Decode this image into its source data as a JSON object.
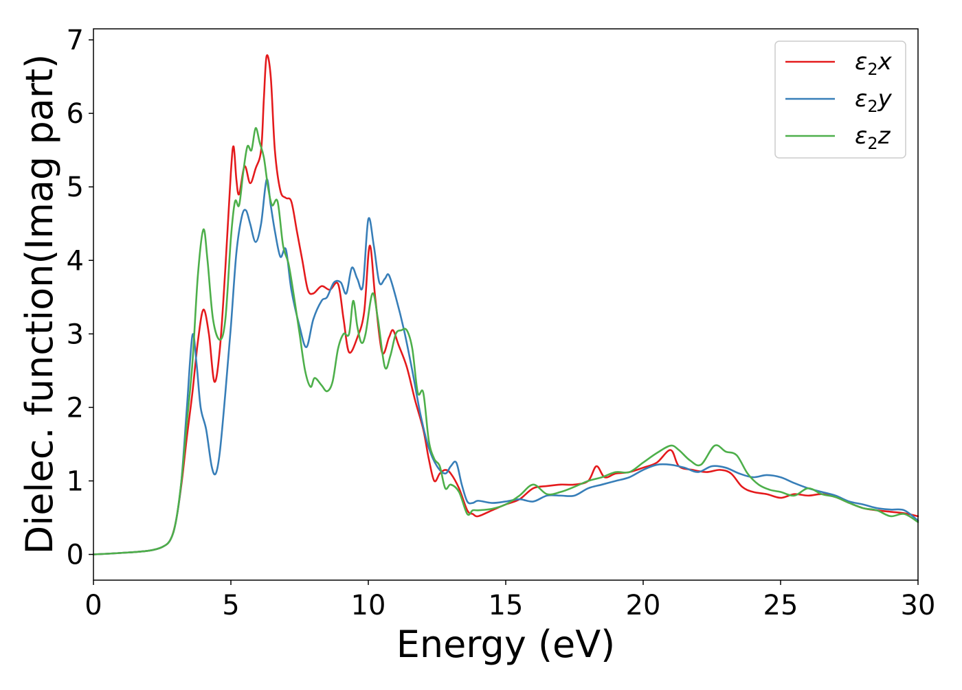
{
  "chart_data": {
    "type": "line",
    "title": "",
    "xlabel": "Energy (eV)",
    "ylabel": "Dielec. function(Imag part)",
    "xlim": [
      0,
      30
    ],
    "ylim": [
      -0.35,
      7.15
    ],
    "xticks": [
      0,
      5,
      10,
      15,
      20,
      25,
      30
    ],
    "yticks": [
      0,
      1,
      2,
      3,
      4,
      5,
      6,
      7
    ],
    "grid": false,
    "legend_position": "top-right",
    "series": [
      {
        "name": "ε2x",
        "legend_main": "ε",
        "legend_sub": "2",
        "legend_tail": "x",
        "color": "#e41a1c",
        "points": [
          [
            0,
            0
          ],
          [
            1,
            0.02
          ],
          [
            2,
            0.05
          ],
          [
            2.5,
            0.1
          ],
          [
            2.8,
            0.2
          ],
          [
            3.0,
            0.45
          ],
          [
            3.2,
            0.95
          ],
          [
            3.4,
            1.6
          ],
          [
            3.6,
            2.2
          ],
          [
            3.8,
            2.9
          ],
          [
            4.0,
            3.33
          ],
          [
            4.2,
            3.0
          ],
          [
            4.4,
            2.35
          ],
          [
            4.6,
            2.8
          ],
          [
            4.8,
            3.9
          ],
          [
            5.0,
            5.2
          ],
          [
            5.1,
            5.55
          ],
          [
            5.2,
            5.1
          ],
          [
            5.3,
            4.9
          ],
          [
            5.5,
            5.28
          ],
          [
            5.7,
            5.05
          ],
          [
            5.9,
            5.25
          ],
          [
            6.1,
            5.5
          ],
          [
            6.2,
            6.2
          ],
          [
            6.3,
            6.78
          ],
          [
            6.45,
            6.5
          ],
          [
            6.6,
            5.5
          ],
          [
            6.8,
            4.95
          ],
          [
            7.0,
            4.85
          ],
          [
            7.2,
            4.8
          ],
          [
            7.4,
            4.4
          ],
          [
            7.6,
            4.0
          ],
          [
            7.8,
            3.6
          ],
          [
            8.0,
            3.55
          ],
          [
            8.3,
            3.65
          ],
          [
            8.6,
            3.6
          ],
          [
            8.9,
            3.68
          ],
          [
            9.1,
            3.2
          ],
          [
            9.3,
            2.75
          ],
          [
            9.6,
            2.95
          ],
          [
            9.85,
            3.3
          ],
          [
            10.05,
            4.2
          ],
          [
            10.25,
            3.5
          ],
          [
            10.5,
            2.75
          ],
          [
            10.75,
            2.95
          ],
          [
            10.9,
            3.05
          ],
          [
            11.1,
            2.85
          ],
          [
            11.4,
            2.55
          ],
          [
            11.7,
            2.1
          ],
          [
            12.0,
            1.7
          ],
          [
            12.2,
            1.3
          ],
          [
            12.4,
            1.0
          ],
          [
            12.6,
            1.1
          ],
          [
            12.8,
            1.15
          ],
          [
            13.0,
            1.1
          ],
          [
            13.3,
            0.9
          ],
          [
            13.6,
            0.6
          ],
          [
            13.8,
            0.55
          ],
          [
            14.0,
            0.52
          ],
          [
            14.5,
            0.6
          ],
          [
            15.0,
            0.68
          ],
          [
            15.5,
            0.75
          ],
          [
            16.0,
            0.9
          ],
          [
            16.5,
            0.93
          ],
          [
            17.0,
            0.95
          ],
          [
            17.5,
            0.95
          ],
          [
            18.0,
            1.0
          ],
          [
            18.3,
            1.2
          ],
          [
            18.6,
            1.05
          ],
          [
            19.0,
            1.1
          ],
          [
            19.5,
            1.12
          ],
          [
            20.0,
            1.18
          ],
          [
            20.5,
            1.25
          ],
          [
            21.0,
            1.42
          ],
          [
            21.3,
            1.2
          ],
          [
            21.8,
            1.15
          ],
          [
            22.3,
            1.12
          ],
          [
            22.8,
            1.15
          ],
          [
            23.2,
            1.1
          ],
          [
            23.6,
            0.92
          ],
          [
            24.0,
            0.85
          ],
          [
            24.5,
            0.82
          ],
          [
            25.0,
            0.77
          ],
          [
            25.5,
            0.82
          ],
          [
            26.0,
            0.8
          ],
          [
            26.5,
            0.82
          ],
          [
            27.0,
            0.78
          ],
          [
            27.5,
            0.7
          ],
          [
            28.0,
            0.63
          ],
          [
            28.5,
            0.6
          ],
          [
            29.0,
            0.58
          ],
          [
            29.5,
            0.56
          ],
          [
            30.0,
            0.52
          ]
        ]
      },
      {
        "name": "ε2y",
        "legend_main": "ε",
        "legend_sub": "2",
        "legend_tail": "y",
        "color": "#377eb8",
        "points": [
          [
            0,
            0
          ],
          [
            1,
            0.02
          ],
          [
            2,
            0.05
          ],
          [
            2.5,
            0.1
          ],
          [
            2.8,
            0.2
          ],
          [
            3.0,
            0.45
          ],
          [
            3.2,
            1.0
          ],
          [
            3.4,
            2.0
          ],
          [
            3.6,
            2.98
          ],
          [
            3.75,
            2.6
          ],
          [
            3.9,
            2.0
          ],
          [
            4.1,
            1.7
          ],
          [
            4.3,
            1.2
          ],
          [
            4.45,
            1.1
          ],
          [
            4.6,
            1.4
          ],
          [
            4.8,
            2.2
          ],
          [
            5.0,
            3.1
          ],
          [
            5.2,
            4.1
          ],
          [
            5.4,
            4.6
          ],
          [
            5.55,
            4.68
          ],
          [
            5.7,
            4.5
          ],
          [
            5.9,
            4.25
          ],
          [
            6.1,
            4.5
          ],
          [
            6.3,
            5.1
          ],
          [
            6.45,
            4.75
          ],
          [
            6.6,
            4.4
          ],
          [
            6.8,
            4.05
          ],
          [
            7.0,
            4.15
          ],
          [
            7.2,
            3.6
          ],
          [
            7.5,
            3.1
          ],
          [
            7.75,
            2.82
          ],
          [
            8.0,
            3.2
          ],
          [
            8.3,
            3.45
          ],
          [
            8.5,
            3.5
          ],
          [
            8.75,
            3.7
          ],
          [
            9.0,
            3.7
          ],
          [
            9.2,
            3.55
          ],
          [
            9.4,
            3.9
          ],
          [
            9.6,
            3.75
          ],
          [
            9.8,
            3.65
          ],
          [
            10.0,
            4.56
          ],
          [
            10.2,
            4.2
          ],
          [
            10.4,
            3.7
          ],
          [
            10.6,
            3.75
          ],
          [
            10.75,
            3.8
          ],
          [
            11.0,
            3.5
          ],
          [
            11.3,
            3.05
          ],
          [
            11.6,
            2.5
          ],
          [
            11.9,
            1.9
          ],
          [
            12.2,
            1.45
          ],
          [
            12.5,
            1.2
          ],
          [
            12.8,
            1.1
          ],
          [
            13.0,
            1.2
          ],
          [
            13.2,
            1.25
          ],
          [
            13.4,
            0.95
          ],
          [
            13.6,
            0.72
          ],
          [
            13.8,
            0.7
          ],
          [
            14.0,
            0.73
          ],
          [
            14.5,
            0.7
          ],
          [
            15.0,
            0.72
          ],
          [
            15.5,
            0.75
          ],
          [
            16.0,
            0.72
          ],
          [
            16.5,
            0.8
          ],
          [
            17.0,
            0.8
          ],
          [
            17.5,
            0.8
          ],
          [
            18.0,
            0.9
          ],
          [
            18.5,
            0.95
          ],
          [
            19.0,
            1.0
          ],
          [
            19.5,
            1.05
          ],
          [
            20.0,
            1.15
          ],
          [
            20.5,
            1.22
          ],
          [
            21.0,
            1.22
          ],
          [
            21.5,
            1.18
          ],
          [
            22.0,
            1.12
          ],
          [
            22.5,
            1.2
          ],
          [
            23.0,
            1.18
          ],
          [
            23.5,
            1.1
          ],
          [
            24.0,
            1.05
          ],
          [
            24.5,
            1.08
          ],
          [
            25.0,
            1.05
          ],
          [
            25.5,
            0.97
          ],
          [
            26.0,
            0.9
          ],
          [
            26.5,
            0.85
          ],
          [
            27.0,
            0.8
          ],
          [
            27.5,
            0.72
          ],
          [
            28.0,
            0.68
          ],
          [
            28.5,
            0.63
          ],
          [
            29.0,
            0.61
          ],
          [
            29.5,
            0.6
          ],
          [
            30.0,
            0.46
          ]
        ]
      },
      {
        "name": "ε2z",
        "legend_main": "ε",
        "legend_sub": "2",
        "legend_tail": "z",
        "color": "#4daf4a",
        "points": [
          [
            0,
            0
          ],
          [
            1,
            0.02
          ],
          [
            2,
            0.05
          ],
          [
            2.5,
            0.1
          ],
          [
            2.8,
            0.2
          ],
          [
            3.0,
            0.45
          ],
          [
            3.2,
            1.0
          ],
          [
            3.4,
            1.8
          ],
          [
            3.6,
            2.6
          ],
          [
            3.8,
            3.8
          ],
          [
            4.0,
            4.42
          ],
          [
            4.15,
            4.0
          ],
          [
            4.35,
            3.2
          ],
          [
            4.6,
            2.92
          ],
          [
            4.8,
            3.2
          ],
          [
            5.0,
            4.3
          ],
          [
            5.15,
            4.8
          ],
          [
            5.3,
            4.75
          ],
          [
            5.45,
            5.2
          ],
          [
            5.6,
            5.55
          ],
          [
            5.75,
            5.5
          ],
          [
            5.9,
            5.8
          ],
          [
            6.05,
            5.6
          ],
          [
            6.2,
            5.4
          ],
          [
            6.35,
            5.0
          ],
          [
            6.5,
            4.75
          ],
          [
            6.7,
            4.8
          ],
          [
            6.9,
            4.2
          ],
          [
            7.1,
            3.95
          ],
          [
            7.3,
            3.5
          ],
          [
            7.5,
            3.0
          ],
          [
            7.7,
            2.5
          ],
          [
            7.9,
            2.28
          ],
          [
            8.05,
            2.4
          ],
          [
            8.3,
            2.3
          ],
          [
            8.5,
            2.22
          ],
          [
            8.7,
            2.35
          ],
          [
            8.9,
            2.8
          ],
          [
            9.1,
            3.0
          ],
          [
            9.3,
            3.0
          ],
          [
            9.45,
            3.45
          ],
          [
            9.6,
            3.1
          ],
          [
            9.75,
            2.88
          ],
          [
            9.9,
            3.0
          ],
          [
            10.15,
            3.55
          ],
          [
            10.35,
            3.2
          ],
          [
            10.6,
            2.55
          ],
          [
            10.8,
            2.7
          ],
          [
            11.0,
            3.0
          ],
          [
            11.2,
            3.05
          ],
          [
            11.4,
            3.05
          ],
          [
            11.6,
            2.8
          ],
          [
            11.8,
            2.2
          ],
          [
            12.0,
            2.2
          ],
          [
            12.2,
            1.55
          ],
          [
            12.4,
            1.3
          ],
          [
            12.6,
            1.2
          ],
          [
            12.8,
            0.9
          ],
          [
            13.0,
            0.95
          ],
          [
            13.3,
            0.85
          ],
          [
            13.6,
            0.55
          ],
          [
            13.8,
            0.6
          ],
          [
            14.0,
            0.6
          ],
          [
            14.5,
            0.62
          ],
          [
            15.0,
            0.68
          ],
          [
            15.5,
            0.8
          ],
          [
            16.0,
            0.95
          ],
          [
            16.5,
            0.82
          ],
          [
            17.0,
            0.85
          ],
          [
            17.5,
            0.92
          ],
          [
            18.0,
            1.0
          ],
          [
            18.5,
            1.05
          ],
          [
            19.0,
            1.12
          ],
          [
            19.5,
            1.12
          ],
          [
            20.0,
            1.25
          ],
          [
            20.5,
            1.38
          ],
          [
            21.0,
            1.48
          ],
          [
            21.3,
            1.42
          ],
          [
            21.7,
            1.28
          ],
          [
            22.1,
            1.22
          ],
          [
            22.6,
            1.48
          ],
          [
            23.0,
            1.4
          ],
          [
            23.4,
            1.35
          ],
          [
            23.8,
            1.1
          ],
          [
            24.2,
            0.95
          ],
          [
            24.6,
            0.88
          ],
          [
            25.0,
            0.85
          ],
          [
            25.5,
            0.8
          ],
          [
            26.0,
            0.9
          ],
          [
            26.5,
            0.82
          ],
          [
            27.0,
            0.78
          ],
          [
            27.5,
            0.7
          ],
          [
            28.0,
            0.63
          ],
          [
            28.5,
            0.6
          ],
          [
            29.0,
            0.52
          ],
          [
            29.5,
            0.55
          ],
          [
            30.0,
            0.44
          ]
        ]
      }
    ]
  }
}
